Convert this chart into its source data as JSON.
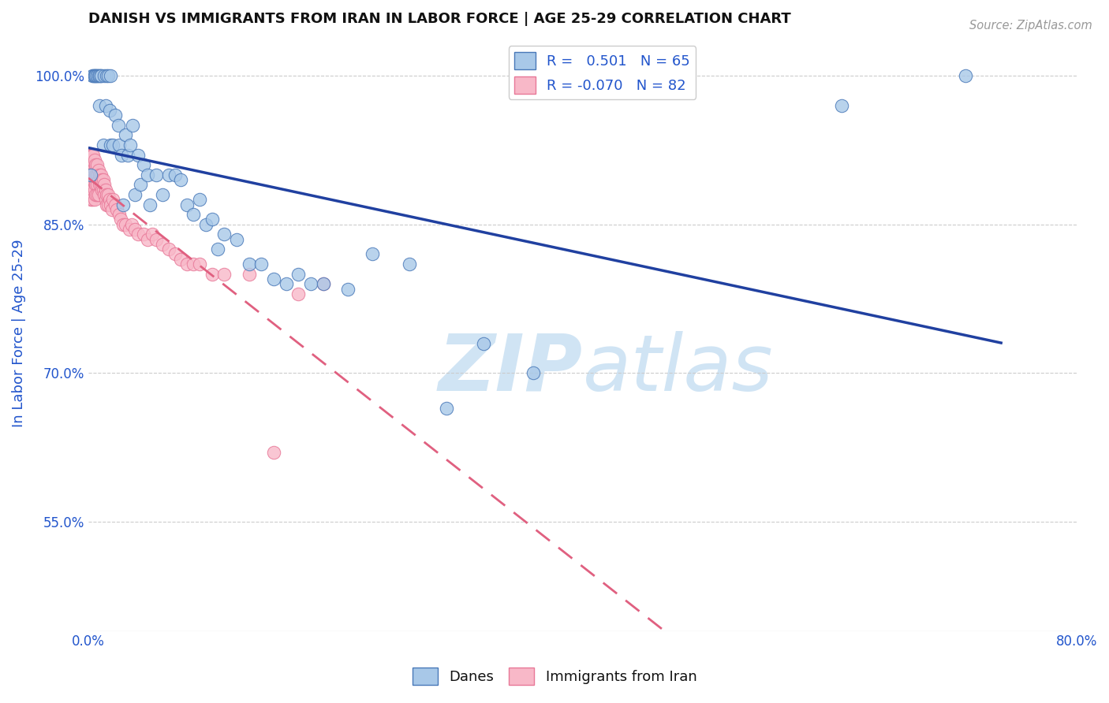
{
  "title": "DANISH VS IMMIGRANTS FROM IRAN IN LABOR FORCE | AGE 25-29 CORRELATION CHART",
  "source": "Source: ZipAtlas.com",
  "ylabel": "In Labor Force | Age 25-29",
  "xlim": [
    0.0,
    0.8
  ],
  "ylim": [
    0.44,
    1.04
  ],
  "yticks": [
    0.55,
    0.7,
    0.85,
    1.0
  ],
  "ytick_labels": [
    "55.0%",
    "70.0%",
    "85.0%",
    "100.0%"
  ],
  "xticks": [
    0.0,
    0.1,
    0.2,
    0.3,
    0.4,
    0.5,
    0.6,
    0.7,
    0.8
  ],
  "xtick_labels": [
    "0.0%",
    "",
    "",
    "",
    "",
    "",
    "",
    "",
    "80.0%"
  ],
  "danes_R": 0.501,
  "danes_N": 65,
  "iran_R": -0.07,
  "iran_N": 82,
  "danes_color": "#a8c8e8",
  "iran_color": "#f8b8c8",
  "danes_edge_color": "#4878b8",
  "iran_edge_color": "#e87898",
  "danes_line_color": "#2040a0",
  "iran_line_color": "#e06080",
  "watermark_color": "#d0e4f4",
  "title_color": "#111111",
  "axis_color": "#2255cc",
  "danes_scatter_x": [
    0.002,
    0.003,
    0.004,
    0.005,
    0.005,
    0.006,
    0.007,
    0.007,
    0.008,
    0.009,
    0.009,
    0.01,
    0.01,
    0.012,
    0.013,
    0.014,
    0.015,
    0.016,
    0.017,
    0.018,
    0.018,
    0.02,
    0.022,
    0.024,
    0.025,
    0.027,
    0.028,
    0.03,
    0.032,
    0.034,
    0.036,
    0.038,
    0.04,
    0.042,
    0.045,
    0.048,
    0.05,
    0.055,
    0.06,
    0.065,
    0.07,
    0.075,
    0.08,
    0.085,
    0.09,
    0.095,
    0.1,
    0.105,
    0.11,
    0.12,
    0.13,
    0.14,
    0.15,
    0.16,
    0.17,
    0.18,
    0.19,
    0.21,
    0.23,
    0.26,
    0.29,
    0.32,
    0.36,
    0.61,
    0.71
  ],
  "danes_scatter_y": [
    0.9,
    1.0,
    1.0,
    1.0,
    1.0,
    1.0,
    1.0,
    1.0,
    1.0,
    1.0,
    0.97,
    1.0,
    1.0,
    0.93,
    1.0,
    0.97,
    1.0,
    1.0,
    0.965,
    0.93,
    1.0,
    0.93,
    0.96,
    0.95,
    0.93,
    0.92,
    0.87,
    0.94,
    0.92,
    0.93,
    0.95,
    0.88,
    0.92,
    0.89,
    0.91,
    0.9,
    0.87,
    0.9,
    0.88,
    0.9,
    0.9,
    0.895,
    0.87,
    0.86,
    0.875,
    0.85,
    0.855,
    0.825,
    0.84,
    0.835,
    0.81,
    0.81,
    0.795,
    0.79,
    0.8,
    0.79,
    0.79,
    0.785,
    0.82,
    0.81,
    0.665,
    0.73,
    0.7,
    0.97,
    1.0
  ],
  "iran_scatter_x": [
    0.001,
    0.001,
    0.001,
    0.001,
    0.002,
    0.002,
    0.002,
    0.002,
    0.002,
    0.003,
    0.003,
    0.003,
    0.003,
    0.003,
    0.003,
    0.004,
    0.004,
    0.004,
    0.004,
    0.005,
    0.005,
    0.005,
    0.005,
    0.005,
    0.006,
    0.006,
    0.006,
    0.006,
    0.007,
    0.007,
    0.007,
    0.007,
    0.008,
    0.008,
    0.008,
    0.009,
    0.009,
    0.01,
    0.01,
    0.011,
    0.011,
    0.012,
    0.012,
    0.013,
    0.013,
    0.014,
    0.014,
    0.015,
    0.015,
    0.016,
    0.016,
    0.017,
    0.018,
    0.019,
    0.02,
    0.022,
    0.023,
    0.025,
    0.026,
    0.028,
    0.03,
    0.033,
    0.035,
    0.038,
    0.04,
    0.045,
    0.048,
    0.052,
    0.055,
    0.06,
    0.065,
    0.07,
    0.075,
    0.08,
    0.085,
    0.09,
    0.1,
    0.11,
    0.13,
    0.15,
    0.17,
    0.19
  ],
  "iran_scatter_y": [
    0.92,
    0.91,
    0.905,
    0.89,
    0.92,
    0.915,
    0.9,
    0.895,
    0.875,
    0.92,
    0.91,
    0.905,
    0.895,
    0.885,
    0.875,
    0.92,
    0.905,
    0.895,
    0.885,
    0.915,
    0.905,
    0.895,
    0.885,
    0.875,
    0.91,
    0.9,
    0.89,
    0.88,
    0.91,
    0.9,
    0.89,
    0.88,
    0.905,
    0.895,
    0.88,
    0.9,
    0.89,
    0.9,
    0.89,
    0.895,
    0.885,
    0.895,
    0.885,
    0.89,
    0.88,
    0.885,
    0.875,
    0.88,
    0.87,
    0.88,
    0.87,
    0.875,
    0.87,
    0.865,
    0.875,
    0.87,
    0.865,
    0.86,
    0.855,
    0.85,
    0.85,
    0.845,
    0.85,
    0.845,
    0.84,
    0.84,
    0.835,
    0.84,
    0.835,
    0.83,
    0.825,
    0.82,
    0.815,
    0.81,
    0.81,
    0.81,
    0.8,
    0.8,
    0.8,
    0.62,
    0.78,
    0.79
  ]
}
